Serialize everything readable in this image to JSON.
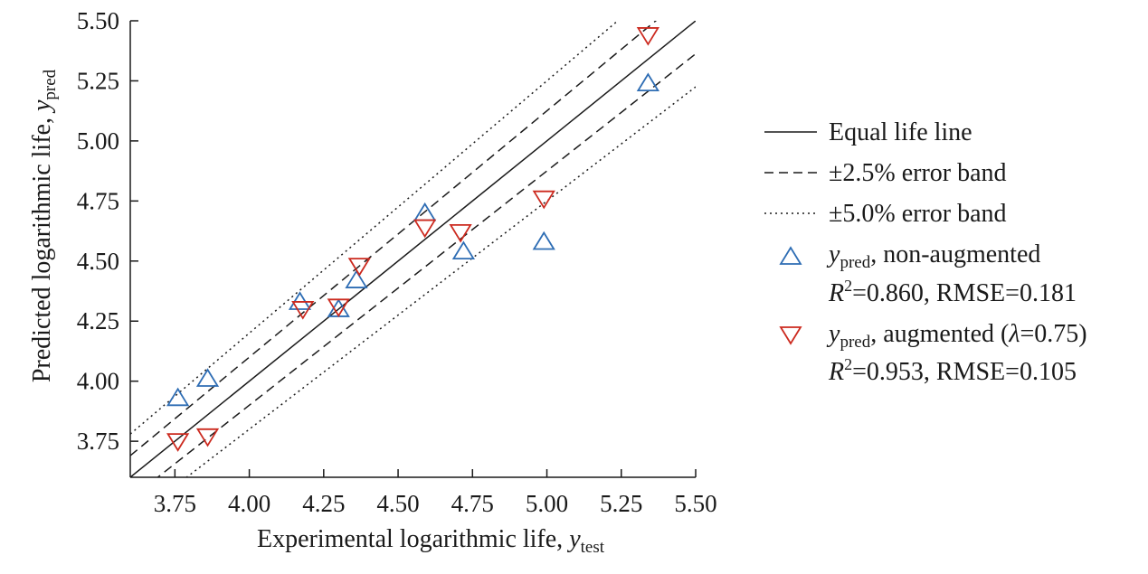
{
  "chart_data": {
    "type": "scatter",
    "xlabel": "Experimental logarithmic life, ",
    "xlabel_var": "y",
    "xlabel_sub": "test",
    "ylabel": "Predicted logarithmic life, ",
    "ylabel_var": "y",
    "ylabel_sub": "pred",
    "xlim": [
      3.6,
      5.5
    ],
    "ylim": [
      3.6,
      5.5
    ],
    "xticks": [
      "3.75",
      "4.00",
      "4.25",
      "4.50",
      "4.75",
      "5.00",
      "5.25",
      "5.50"
    ],
    "yticks": [
      "3.75",
      "4.00",
      "4.25",
      "4.50",
      "4.75",
      "5.00",
      "5.25",
      "5.50"
    ],
    "grid": false,
    "legend_position": "right",
    "colors": {
      "axis": "#1a1a1a",
      "non_augmented": "#2e6db4",
      "augmented": "#cc2a1f"
    },
    "lines": [
      {
        "label": "Equal life line",
        "style": "solid",
        "factor": 1.0
      },
      {
        "label": "±2.5% error band",
        "style": "dashed",
        "factors": [
          1.025,
          0.975
        ]
      },
      {
        "label": "±5.0% error band",
        "style": "dotted",
        "factors": [
          1.05,
          0.95
        ]
      }
    ],
    "series": [
      {
        "name": "non-augmented",
        "legend_var": "y",
        "legend_sub": "pred",
        "legend_rest": ", non-augmented",
        "metrics": "=0.860, RMSE=0.181",
        "marker": "triangle-up",
        "points": [
          [
            3.76,
            3.93
          ],
          [
            3.86,
            4.01
          ],
          [
            4.17,
            4.33
          ],
          [
            4.3,
            4.3
          ],
          [
            4.36,
            4.42
          ],
          [
            4.59,
            4.7
          ],
          [
            4.72,
            4.54
          ],
          [
            4.99,
            4.58
          ],
          [
            5.34,
            5.24
          ]
        ]
      },
      {
        "name": "augmented (λ=0.75)",
        "legend_var": "y",
        "legend_sub": "pred",
        "legend_rest_a": ", augmented (",
        "legend_lambda": "λ",
        "legend_rest_b": "=0.75)",
        "metrics": "=0.953, RMSE=0.105",
        "marker": "triangle-down",
        "points": [
          [
            3.76,
            3.75
          ],
          [
            3.86,
            3.77
          ],
          [
            4.18,
            4.3
          ],
          [
            4.3,
            4.31
          ],
          [
            4.37,
            4.48
          ],
          [
            4.59,
            4.64
          ],
          [
            4.71,
            4.62
          ],
          [
            4.99,
            4.76
          ],
          [
            5.34,
            5.44
          ]
        ]
      }
    ],
    "metric_symbol": "R",
    "metric_sup": "2"
  }
}
